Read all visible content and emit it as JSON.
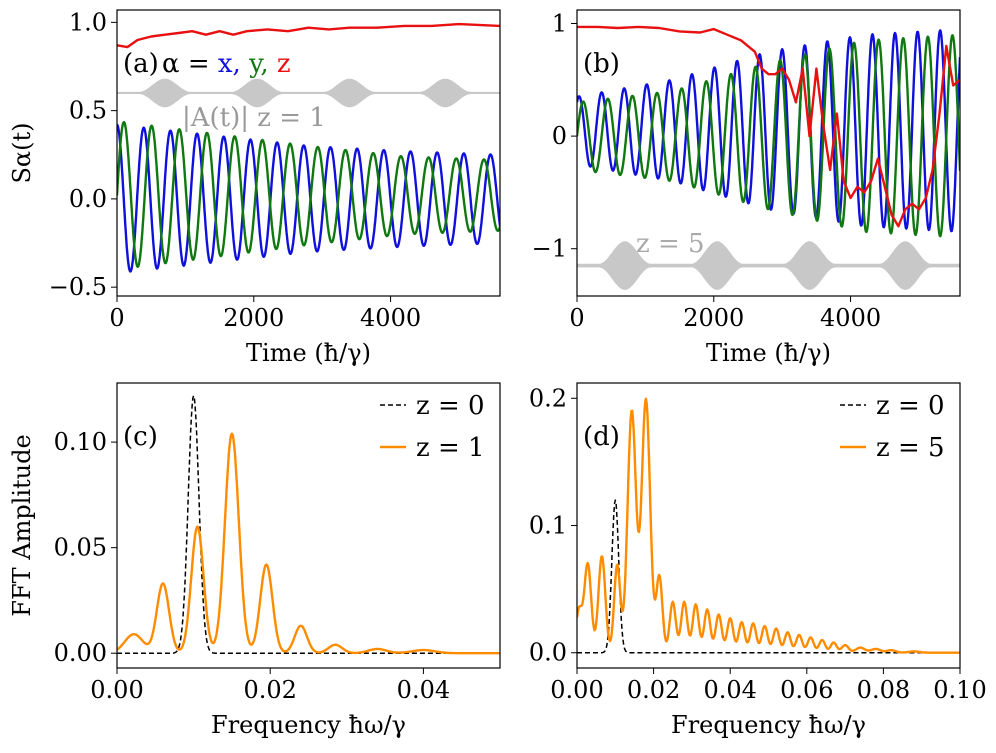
{
  "chart_data": [
    {
      "id": "a",
      "type": "line",
      "panel_label": "(a)",
      "title_prefix": "α =",
      "legend_letters": [
        {
          "text": "x,",
          "color": "#1010dd"
        },
        {
          "text": "y,",
          "color": "#107810"
        },
        {
          "text": "z",
          "color": "#e81010"
        }
      ],
      "field_label": "|A(t)|",
      "z_label": "z = 1",
      "ylabel": "Sα(t)",
      "xlabel": "Time (ħ/γ)",
      "xlim": [
        0,
        5600
      ],
      "ylim": [
        -0.55,
        1.07
      ],
      "xticks": [
        0,
        2000,
        4000
      ],
      "xtick_labels": [
        "0",
        "2000",
        "4000"
      ],
      "yticks": [
        -0.5,
        0.0,
        0.5,
        1.0
      ],
      "ytick_labels": [
        "−0.5",
        "0.0",
        "0.5",
        "1.0"
      ],
      "pulse": {
        "baseline": 0.6,
        "height": 0.075,
        "centers": [
          700,
          2050,
          3400,
          4800
        ],
        "width": 380,
        "color": "#c8c8c8"
      },
      "series": [
        {
          "name": "x",
          "color": "#1010dd",
          "mean": 0.0,
          "amp": [
            0.42,
            0.36,
            0.3,
            0.27,
            0.25
          ],
          "period": 390,
          "phase": 1.55,
          "t_end": 5600
        },
        {
          "name": "y",
          "color": "#107810",
          "mean": 0.02,
          "amp": [
            0.42,
            0.35,
            0.28,
            0.22,
            0.2
          ],
          "period": 405,
          "phase": 0.0,
          "t_end": 5600
        },
        {
          "name": "z",
          "color": "#e81010",
          "points": [
            [
              0,
              0.87
            ],
            [
              150,
              0.86
            ],
            [
              300,
              0.9
            ],
            [
              500,
              0.92
            ],
            [
              700,
              0.93
            ],
            [
              900,
              0.94
            ],
            [
              1100,
              0.95
            ],
            [
              1300,
              0.93
            ],
            [
              1500,
              0.95
            ],
            [
              1700,
              0.93
            ],
            [
              1900,
              0.95
            ],
            [
              2200,
              0.96
            ],
            [
              2500,
              0.95
            ],
            [
              2800,
              0.97
            ],
            [
              3100,
              0.96
            ],
            [
              3400,
              0.97
            ],
            [
              3800,
              0.97
            ],
            [
              4200,
              0.98
            ],
            [
              4600,
              0.98
            ],
            [
              5000,
              0.99
            ],
            [
              5600,
              0.98
            ]
          ]
        }
      ]
    },
    {
      "id": "b",
      "type": "line",
      "panel_label": "(b)",
      "z_label": "z = 5",
      "xlabel": "Time (ħ/γ)",
      "xlim": [
        0,
        5600
      ],
      "ylim": [
        -1.42,
        1.12
      ],
      "xticks": [
        0,
        2000,
        4000
      ],
      "xtick_labels": [
        "0",
        "2000",
        "4000"
      ],
      "yticks": [
        -1,
        0,
        1
      ],
      "ytick_labels": [
        "−1",
        "0",
        "1"
      ],
      "pulse": {
        "baseline": -1.15,
        "height": 0.2,
        "centers": [
          700,
          2050,
          3400,
          4800
        ],
        "width": 380,
        "color": "#c8c8c8"
      },
      "series": [
        {
          "name": "x",
          "color": "#1010dd",
          "mean": 0.05,
          "amp": [
            0.3,
            0.45,
            0.7,
            0.85,
            0.9
          ],
          "period": 330,
          "phase": 1.0,
          "t_end": 5600
        },
        {
          "name": "y",
          "color": "#107810",
          "mean": 0.0,
          "amp": [
            0.3,
            0.4,
            0.65,
            0.85,
            0.9
          ],
          "period": 360,
          "phase": 0.0,
          "t_end": 5600
        },
        {
          "name": "z",
          "color": "#e81010",
          "points": [
            [
              0,
              0.97
            ],
            [
              300,
              0.97
            ],
            [
              600,
              0.96
            ],
            [
              900,
              0.97
            ],
            [
              1200,
              0.96
            ],
            [
              1500,
              0.93
            ],
            [
              1800,
              0.92
            ],
            [
              2000,
              0.95
            ],
            [
              2200,
              0.9
            ],
            [
              2400,
              0.85
            ],
            [
              2600,
              0.75
            ],
            [
              2700,
              0.6
            ],
            [
              2800,
              0.55
            ],
            [
              2900,
              0.55
            ],
            [
              3000,
              0.6
            ],
            [
              3100,
              0.5
            ],
            [
              3200,
              0.3
            ],
            [
              3300,
              0.6
            ],
            [
              3400,
              0.0
            ],
            [
              3500,
              0.6
            ],
            [
              3600,
              0.1
            ],
            [
              3700,
              -0.3
            ],
            [
              3800,
              0.2
            ],
            [
              3900,
              -0.4
            ],
            [
              4000,
              -0.55
            ],
            [
              4100,
              -0.45
            ],
            [
              4200,
              -0.5
            ],
            [
              4300,
              -0.4
            ],
            [
              4400,
              -0.2
            ],
            [
              4500,
              -0.45
            ],
            [
              4600,
              -0.7
            ],
            [
              4700,
              -0.8
            ],
            [
              4800,
              -0.65
            ],
            [
              4900,
              -0.6
            ],
            [
              5000,
              -0.65
            ],
            [
              5100,
              -0.55
            ],
            [
              5200,
              -0.3
            ],
            [
              5300,
              0.2
            ],
            [
              5400,
              0.8
            ],
            [
              5500,
              0.45
            ],
            [
              5600,
              0.5
            ]
          ]
        }
      ]
    },
    {
      "id": "c",
      "type": "line",
      "panel_label": "(c)",
      "ylabel": "FFT Amplitude",
      "xlabel": "Frequency ħω/γ",
      "xlim": [
        0,
        0.05
      ],
      "ylim": [
        -0.007,
        0.128
      ],
      "xticks": [
        0,
        0.02,
        0.04
      ],
      "xtick_labels": [
        "0.00",
        "0.02",
        "0.04"
      ],
      "yticks": [
        0,
        0.05,
        0.1
      ],
      "ytick_labels": [
        "0.00",
        "0.05",
        "0.10"
      ],
      "legend": [
        {
          "label": "z = 0",
          "color": "#000000",
          "dash": true
        },
        {
          "label": "z = 1",
          "color": "#ff8c00",
          "dash": false
        }
      ],
      "series": [
        {
          "name": "z = 0",
          "color": "#000000",
          "dash": true,
          "peaks": [
            [
              0.01,
              0.122,
              0.0007
            ]
          ],
          "xmax": 0.05
        },
        {
          "name": "z = 1",
          "color": "#ff8c00",
          "dash": false,
          "peaks": [
            [
              0.0022,
              0.009,
              0.0012
            ],
            [
              0.006,
              0.033,
              0.0008
            ],
            [
              0.0105,
              0.06,
              0.0008
            ],
            [
              0.015,
              0.104,
              0.0009
            ],
            [
              0.0195,
              0.042,
              0.0008
            ],
            [
              0.024,
              0.013,
              0.0008
            ],
            [
              0.0285,
              0.004,
              0.0009
            ],
            [
              0.034,
              0.002,
              0.0012
            ],
            [
              0.04,
              0.0015,
              0.0015
            ]
          ],
          "xmax": 0.05
        }
      ]
    },
    {
      "id": "d",
      "type": "line",
      "panel_label": "(d)",
      "xlabel": "Frequency ħω/γ",
      "xlim": [
        0,
        0.1
      ],
      "ylim": [
        -0.012,
        0.212
      ],
      "xticks": [
        0,
        0.02,
        0.04,
        0.06,
        0.08,
        0.1
      ],
      "xtick_labels": [
        "0.00",
        "0.02",
        "0.04",
        "0.06",
        "0.08",
        "0.10"
      ],
      "yticks": [
        0,
        0.1,
        0.2
      ],
      "ytick_labels": [
        "0.0",
        "0.1",
        "0.2"
      ],
      "legend": [
        {
          "label": "z = 0",
          "color": "#000000",
          "dash": true
        },
        {
          "label": "z = 5",
          "color": "#ff8c00",
          "dash": false
        }
      ],
      "series": [
        {
          "name": "z = 0",
          "color": "#000000",
          "dash": true,
          "peaks": [
            [
              0.01,
              0.12,
              0.0009
            ]
          ],
          "xmax": 0.1
        },
        {
          "name": "z = 5",
          "color": "#ff8c00",
          "dash": false,
          "peaks": [
            [
              0.0005,
              0.033,
              0.0008
            ],
            [
              0.0028,
              0.07,
              0.0009
            ],
            [
              0.0065,
              0.076,
              0.0009
            ],
            [
              0.0105,
              0.069,
              0.0008
            ],
            [
              0.0143,
              0.19,
              0.0011
            ],
            [
              0.018,
              0.199,
              0.0011
            ],
            [
              0.0215,
              0.06,
              0.0008
            ],
            [
              0.025,
              0.04,
              0.0008
            ],
            [
              0.028,
              0.04,
              0.0008
            ],
            [
              0.031,
              0.038,
              0.0008
            ],
            [
              0.034,
              0.034,
              0.0008
            ],
            [
              0.037,
              0.03,
              0.0008
            ],
            [
              0.04,
              0.027,
              0.0008
            ],
            [
              0.043,
              0.024,
              0.0008
            ],
            [
              0.046,
              0.023,
              0.0008
            ],
            [
              0.049,
              0.021,
              0.0008
            ],
            [
              0.052,
              0.019,
              0.0008
            ],
            [
              0.055,
              0.016,
              0.0008
            ],
            [
              0.058,
              0.014,
              0.0008
            ],
            [
              0.061,
              0.012,
              0.0008
            ],
            [
              0.064,
              0.01,
              0.0008
            ],
            [
              0.067,
              0.008,
              0.0008
            ],
            [
              0.07,
              0.006,
              0.0009
            ],
            [
              0.074,
              0.004,
              0.0012
            ],
            [
              0.078,
              0.003,
              0.0012
            ],
            [
              0.082,
              0.002,
              0.0012
            ],
            [
              0.088,
              0.001,
              0.0015
            ]
          ],
          "xmax": 0.1
        }
      ]
    }
  ]
}
